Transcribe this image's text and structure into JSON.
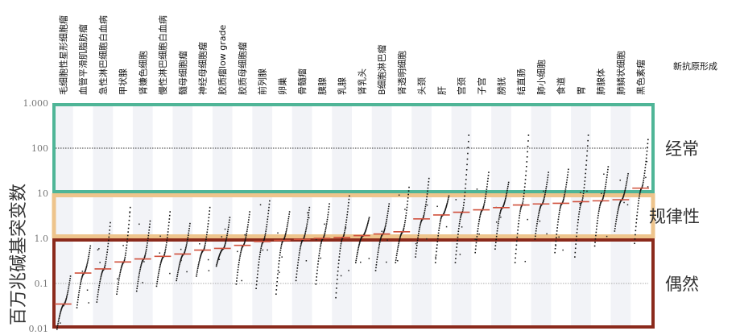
{
  "chart_data": {
    "type": "scatter",
    "subtype": "sorted-dot-strip-with-median",
    "ylabel": "百万兆碱基突变数",
    "yscale": "log",
    "ylim": [
      0.01,
      1000
    ],
    "yticks": [
      {
        "value": 0.01,
        "label": "0.01"
      },
      {
        "value": 0.1,
        "label": "0.1"
      },
      {
        "value": 1,
        "label": "1.0"
      },
      {
        "value": 10,
        "label": "10"
      },
      {
        "value": 100,
        "label": "100"
      },
      {
        "value": 1000,
        "label": "1.000"
      }
    ],
    "reference_lines": [
      100,
      0.1
    ],
    "new_antigen_label": "新抗原形成",
    "zones": [
      {
        "label": "经常",
        "range": [
          10,
          1000
        ],
        "color": "#4fb597"
      },
      {
        "label": "规律性",
        "range": [
          1,
          10
        ],
        "color": "#eec48c"
      },
      {
        "label": "偶然",
        "range": [
          0.01,
          1
        ],
        "color": "#8b2a1c"
      }
    ],
    "median_color": "#d0503c",
    "categories": [
      "毛细胞性星形细胞瘤",
      "血管平滑肌脂肪瘤",
      "急性淋巴细胞白血病",
      "甲状腺",
      "肾嫌色细胞",
      "慢性淋巴细胞白血病",
      "髓母细胞瘤",
      "神经母细胞瘤",
      "胶质瘤low grade",
      "胶质母细胞瘤",
      "前列腺",
      "卵巢",
      "骨髓瘤",
      "胰腺",
      "乳腺",
      "肾乳头",
      "B细胞淋巴瘤",
      "肾透明细胞",
      "头颈",
      "肝",
      "宫颈",
      "子宫",
      "膀胱",
      "结直肠",
      "肺小细胞",
      "食道",
      "胃",
      "肺腺体",
      "肺鳞状细胞",
      "黑色素瘤"
    ],
    "medians": [
      0.035,
      0.17,
      0.21,
      0.3,
      0.35,
      0.4,
      0.45,
      0.55,
      0.6,
      0.7,
      0.85,
      0.9,
      0.95,
      1.0,
      1.05,
      1.15,
      1.25,
      1.4,
      2.7,
      3.3,
      3.8,
      4.3,
      4.8,
      5.5,
      5.8,
      6.0,
      6.5,
      6.8,
      7.2,
      13
    ],
    "ranges": [
      [
        0.01,
        0.15
      ],
      [
        0.03,
        0.7
      ],
      [
        0.04,
        2.3
      ],
      [
        0.06,
        5
      ],
      [
        0.07,
        2.5
      ],
      [
        0.09,
        4
      ],
      [
        0.12,
        2.2
      ],
      [
        0.15,
        5
      ],
      [
        0.25,
        3
      ],
      [
        0.1,
        4
      ],
      [
        0.08,
        7
      ],
      [
        0.06,
        4
      ],
      [
        0.12,
        5
      ],
      [
        0.1,
        6
      ],
      [
        0.05,
        9
      ],
      [
        0.3,
        3
      ],
      [
        0.2,
        6
      ],
      [
        0.3,
        14
      ],
      [
        0.4,
        22
      ],
      [
        0.3,
        9
      ],
      [
        0.3,
        200
      ],
      [
        0.5,
        30
      ],
      [
        0.6,
        18
      ],
      [
        0.3,
        200
      ],
      [
        1,
        30
      ],
      [
        0.5,
        35
      ],
      [
        0.4,
        200
      ],
      [
        0.7,
        40
      ],
      [
        1.5,
        28
      ],
      [
        0.8,
        160
      ]
    ]
  }
}
